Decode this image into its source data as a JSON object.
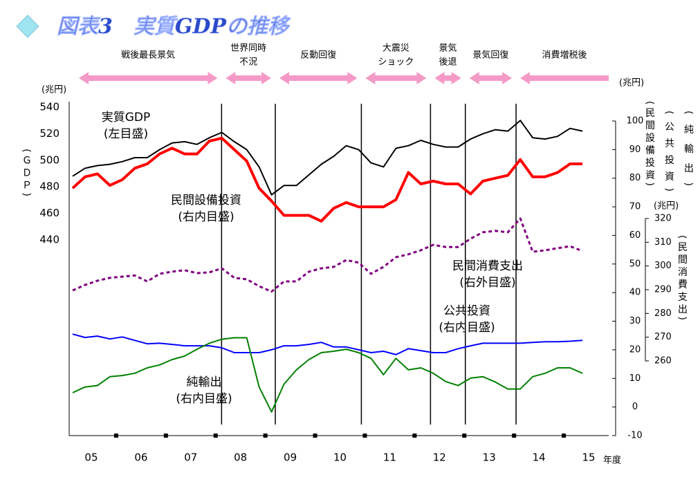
{
  "chart_data": {
    "type": "line",
    "title": "図表3　実質GDPの推移",
    "xlabel": "年度",
    "xlim": [
      2005,
      2016
    ],
    "xticks": [
      {
        "value": 2005.5,
        "label": "05"
      },
      {
        "value": 2006.5,
        "label": "06"
      },
      {
        "value": 2007.5,
        "label": "07"
      },
      {
        "value": 2008.5,
        "label": "08"
      },
      {
        "value": 2009.5,
        "label": "09"
      },
      {
        "value": 2010.5,
        "label": "10"
      },
      {
        "value": 2011.5,
        "label": "11"
      },
      {
        "value": 2012.5,
        "label": "12"
      },
      {
        "value": 2013.5,
        "label": "13"
      },
      {
        "value": 2014.5,
        "label": "14"
      },
      {
        "value": 2015.5,
        "label": "15"
      }
    ],
    "xtick_marks": [
      2006,
      2007,
      2008,
      2009,
      2010,
      2011,
      2012,
      2013,
      2014,
      2015
    ],
    "ylabel": "(ＧＤＰ)",
    "yunit": "(兆円)",
    "ylim": [
      440,
      540
    ],
    "yticks": [
      440,
      460,
      480,
      500,
      520,
      540
    ],
    "y2labels": [
      "(民間設備投資)",
      "(公共投資)",
      "(純輸出)"
    ],
    "y2unit": "(兆円)",
    "y2lim": [
      -10,
      100
    ],
    "y2ticks": [
      -10,
      0,
      10,
      20,
      30,
      40,
      50,
      60,
      70,
      80,
      90,
      100
    ],
    "y3label": "(民間消費支出)",
    "y3unit": "(兆円)",
    "y3lim": [
      260,
      320
    ],
    "y3ticks": [
      260,
      270,
      280,
      290,
      300,
      310,
      320
    ],
    "event_lines": [
      2008.12,
      2009.2,
      2010.93,
      2012.32,
      2013.02,
      2014.04
    ],
    "periods": [
      {
        "lines": [
          "戦後最長景気"
        ],
        "direction": "both"
      },
      {
        "lines": [
          "世界同時",
          "不況"
        ],
        "direction": "both"
      },
      {
        "lines": [
          "反動回復"
        ],
        "direction": "both"
      },
      {
        "lines": [
          "大震災",
          "ショック"
        ],
        "direction": "both"
      },
      {
        "lines": [
          "景気",
          "後退"
        ],
        "direction": "both"
      },
      {
        "lines": [
          "景気回復"
        ],
        "direction": "both"
      },
      {
        "lines": [
          "消費増税後"
        ],
        "direction": "left"
      }
    ],
    "x": [
      2005.125,
      2005.375,
      2005.625,
      2005.875,
      2006.125,
      2006.375,
      2006.625,
      2006.875,
      2007.125,
      2007.375,
      2007.625,
      2007.875,
      2008.125,
      2008.375,
      2008.625,
      2008.875,
      2009.125,
      2009.375,
      2009.625,
      2009.875,
      2010.125,
      2010.375,
      2010.625,
      2010.875,
      2011.125,
      2011.375,
      2011.625,
      2011.875,
      2012.125,
      2012.375,
      2012.625,
      2012.875,
      2013.125,
      2013.375,
      2013.625,
      2013.875,
      2014.125,
      2014.375,
      2014.625,
      2014.875,
      2015.125,
      2015.375
    ],
    "series": [
      {
        "name": "実質GDP",
        "note": "(左目盛)",
        "axis": "y",
        "color": "#000000",
        "width": 2,
        "values": [
          488,
          494,
          496,
          497,
          499,
          502,
          502,
          508,
          513,
          514,
          512,
          517,
          521,
          514,
          508,
          495,
          474,
          481,
          481,
          489,
          497,
          503,
          511,
          508,
          498,
          495,
          509,
          511,
          515,
          512,
          510,
          510,
          516,
          520,
          523,
          522,
          530,
          517,
          516,
          518,
          524,
          522
        ]
      },
      {
        "name": "民間設備投資",
        "note": "(右内目盛)",
        "axis": "y2",
        "color": "#ff0000",
        "width": 4,
        "values": [
          76.5,
          80.5,
          81.5,
          77.5,
          79.5,
          83.5,
          85,
          88.5,
          90.5,
          88.5,
          88.5,
          93,
          94,
          90,
          86,
          76.5,
          72,
          67,
          67,
          67,
          65,
          69.5,
          71.5,
          70,
          70,
          70,
          72.5,
          82,
          78,
          79,
          78,
          78,
          74.5,
          79,
          80,
          81,
          86.5,
          80.5,
          80.5,
          82,
          85,
          85
        ]
      },
      {
        "name": "民間消費支出",
        "note": "(右外目盛)",
        "axis": "y3",
        "color": "#800080",
        "width": 3,
        "dashed": true,
        "values": [
          289.7,
          292,
          293.8,
          295,
          295.5,
          296,
          293.5,
          296.7,
          297.6,
          298.2,
          297,
          297.3,
          299,
          295,
          294.4,
          291.5,
          289.2,
          293.5,
          293.5,
          297.6,
          299,
          299.6,
          302.5,
          301.4,
          296.7,
          299.6,
          303.7,
          304.9,
          306.6,
          308.9,
          308,
          308,
          311.5,
          314.2,
          314.8,
          314.2,
          320,
          306,
          306.6,
          307.5,
          308.3,
          306.3
        ]
      },
      {
        "name": "公共投資",
        "note": "(右内目盛)",
        "axis": "y2",
        "color": "#0000ff",
        "width": 2,
        "values": [
          25.5,
          24.3,
          24.8,
          23.8,
          24.5,
          23.3,
          22.1,
          22.3,
          21.9,
          21.4,
          21.4,
          21.4,
          20.7,
          19,
          19,
          19,
          20,
          21.4,
          21.4,
          21.9,
          22.6,
          21,
          21,
          20,
          19,
          19.5,
          18.3,
          20.4,
          19.7,
          19,
          19,
          20.4,
          21.4,
          22.3,
          22.3,
          22.3,
          22.3,
          22.6,
          22.8,
          22.8,
          23,
          23.3
        ]
      },
      {
        "name": "純輸出",
        "note": "(右内目盛)",
        "axis": "y2",
        "color": "#008000",
        "width": 2,
        "values": [
          5,
          7,
          7.5,
          10.6,
          11,
          11.8,
          13.7,
          14.7,
          16.6,
          17.8,
          20.2,
          22.3,
          23.7,
          24.2,
          24.2,
          7,
          -1.7,
          8,
          13,
          16.6,
          19,
          19.5,
          20.2,
          19,
          17,
          11.3,
          17,
          13,
          13.7,
          11.8,
          8.9,
          7.5,
          10.1,
          10.6,
          8.7,
          6.3,
          6.3,
          10.6,
          11.8,
          13.7,
          13.7,
          11.8
        ]
      }
    ]
  }
}
